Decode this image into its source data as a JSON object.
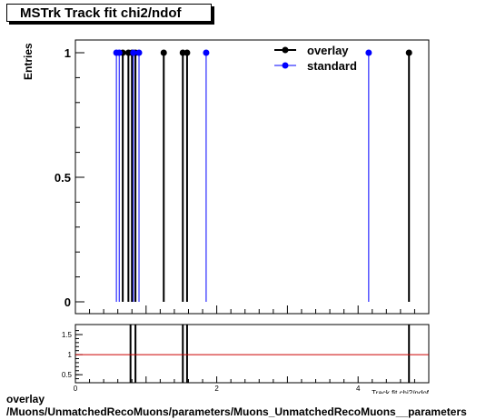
{
  "title": "MSTrk Track fit chi2/ndof",
  "ylabel": "Entries",
  "xlabel": "Track fit chi2/ndof",
  "footer_line1": "overlay",
  "footer_line2": "/Muons/UnmatchedRecoMuons/parameters/Muons_UnmatchedRecoMuons__parameters",
  "colors": {
    "overlay": "#000000",
    "standard": "#0000ff",
    "ratio_line": "#cc0000"
  },
  "chart_data": [
    {
      "type": "scatter",
      "xlim": [
        0,
        5
      ],
      "ylim": [
        0,
        1.05
      ],
      "yticks": [
        0,
        0.5,
        1
      ],
      "ytick_labels": [
        "0",
        "0.5",
        "1"
      ],
      "legend": "top-right",
      "series": [
        {
          "name": "overlay",
          "x": [
            0.67,
            0.75,
            0.8,
            0.85,
            1.25,
            1.52,
            1.58,
            4.72
          ],
          "y": [
            1,
            1,
            1,
            1,
            1,
            1,
            1,
            1
          ]
        },
        {
          "name": "standard",
          "x": [
            0.58,
            0.62,
            0.82,
            0.9,
            1.85,
            4.15
          ],
          "y": [
            1,
            1,
            1,
            1,
            1,
            1
          ]
        }
      ]
    },
    {
      "type": "line",
      "xlim": [
        0,
        5
      ],
      "ylim": [
        0.3,
        1.75
      ],
      "xticks": [
        0,
        2,
        4
      ],
      "xtick_labels": [
        "0",
        "2",
        "4"
      ],
      "yticks": [
        0.5,
        1,
        1.5
      ],
      "ytick_labels": [
        "0.5",
        "1",
        "1.5"
      ],
      "reference_y": 1,
      "spikes_x": [
        0.78,
        0.85,
        1.52,
        1.58,
        4.72
      ]
    }
  ]
}
